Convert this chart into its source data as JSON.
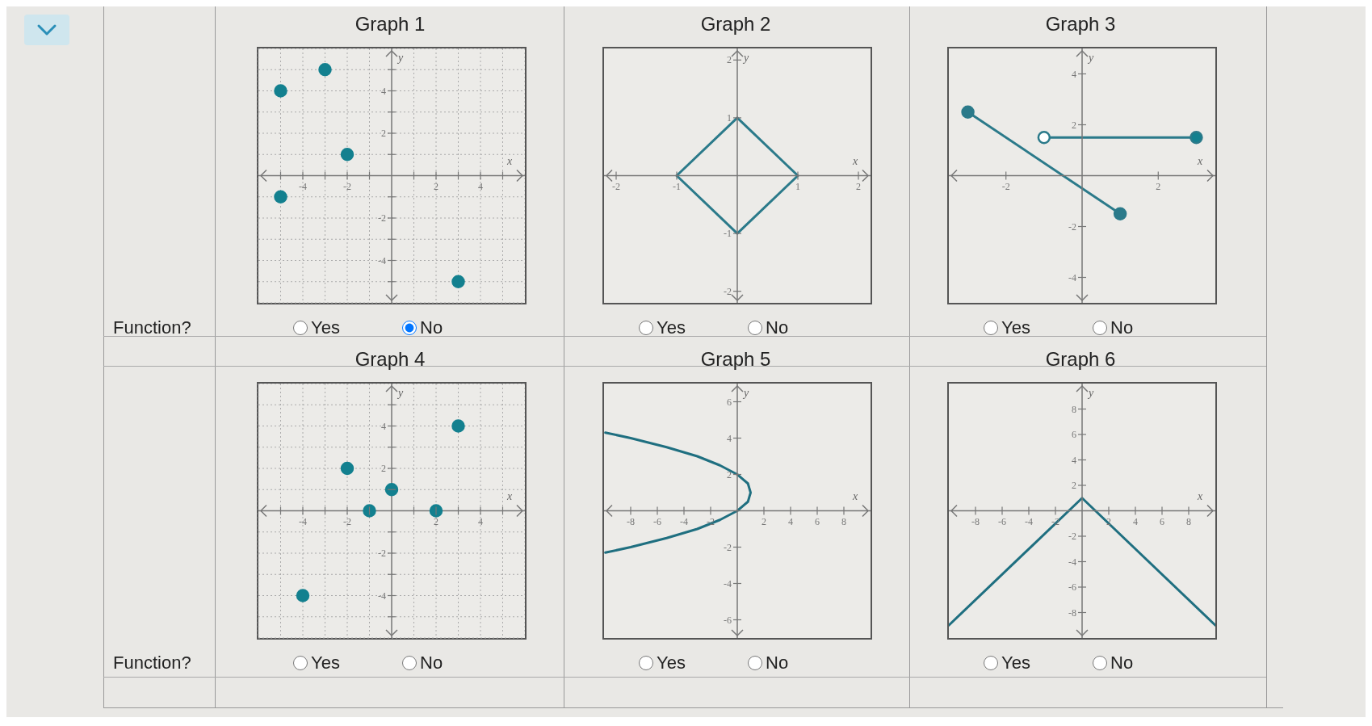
{
  "chart_data": [
    {
      "type": "scatter",
      "title": "Graph 1",
      "xlabel": "x",
      "ylabel": "y",
      "x": [
        -5,
        -3,
        -2,
        -5,
        3
      ],
      "values": [
        4,
        5,
        1,
        -1,
        -5
      ],
      "color": "#13808f",
      "marker": "circle",
      "grid": true,
      "xlim": [
        -6,
        6
      ],
      "ylim": [
        -6,
        6
      ],
      "xticks": [
        {
          "value": -5,
          "label": null
        },
        -4,
        {
          "value": -3,
          "label": null
        },
        -2,
        {
          "value": -1,
          "label": null
        },
        {
          "value": 1,
          "label": null
        },
        2,
        {
          "value": 3,
          "label": null
        },
        4,
        {
          "value": 5,
          "label": null
        }
      ],
      "yticks": [
        {
          "value": -5,
          "label": null
        },
        -4,
        {
          "value": -3,
          "label": null
        },
        -2,
        {
          "value": -1,
          "label": null
        },
        {
          "value": 1,
          "label": null
        },
        2,
        {
          "value": 3,
          "label": null
        },
        4,
        {
          "value": 5,
          "label": null
        }
      ],
      "annotations": [
        "Function?",
        "Yes",
        "No"
      ]
    },
    {
      "type": "line",
      "title": "Graph 2",
      "xlabel": "x",
      "ylabel": "y",
      "series": [
        {
          "color": "#2b7a8a",
          "x": [
            -1,
            0,
            1
          ],
          "values": [
            0,
            1,
            0
          ]
        },
        {
          "color": "#2b7a8a",
          "x": [
            -1,
            0,
            1
          ],
          "values": [
            0,
            -1,
            0
          ]
        }
      ],
      "xlim": [
        -2.2,
        2.2
      ],
      "ylim": [
        -2.2,
        2.2
      ],
      "xticks": [
        -2,
        -1,
        1,
        2
      ],
      "yticks": [
        -2,
        -1,
        1,
        2
      ],
      "annotations": [
        "Yes",
        "No"
      ]
    },
    {
      "type": "line",
      "title": "Graph 3",
      "xlabel": "x",
      "ylabel": "y",
      "series": [
        {
          "color": "#2b7a8a",
          "x": [
            -3,
            1
          ],
          "values": [
            2.5,
            -1.5
          ],
          "marker": "circle"
        },
        {
          "color": "#2b7a8a",
          "x": [
            -1,
            3
          ],
          "values": [
            1.5,
            1.5
          ]
        },
        {
          "type": "scatter",
          "color": "#13808f",
          "x": [
            3
          ],
          "values": [
            1.5
          ],
          "marker": "circle"
        },
        {
          "type": "scatter",
          "color": "#ffffff",
          "x": [
            -1
          ],
          "values": [
            1.5
          ],
          "marker": "circle"
        }
      ],
      "xlim": [
        -3.5,
        3.5
      ],
      "ylim": [
        -5,
        5
      ],
      "xticks": [
        -2,
        2
      ],
      "yticks": [
        -4,
        -2,
        2,
        4
      ],
      "annotations": [
        "Yes",
        "No"
      ]
    },
    {
      "type": "scatter",
      "title": "Graph 4",
      "xlabel": "x",
      "ylabel": "y",
      "x": [
        -4,
        -2,
        -1,
        0,
        2,
        3
      ],
      "values": [
        -4,
        2,
        0,
        1,
        0,
        4
      ],
      "color": "#13808f",
      "marker": "circle",
      "grid": true,
      "xlim": [
        -6,
        6
      ],
      "ylim": [
        -6,
        6
      ],
      "xticks": [
        {
          "value": -5,
          "label": null
        },
        -4,
        {
          "value": -3,
          "label": null
        },
        -2,
        {
          "value": -1,
          "label": null
        },
        {
          "value": 1,
          "label": null
        },
        2,
        {
          "value": 3,
          "label": null
        },
        4,
        {
          "value": 5,
          "label": null
        }
      ],
      "yticks": [
        {
          "value": -5,
          "label": null
        },
        -4,
        {
          "value": -3,
          "label": null
        },
        -2,
        {
          "value": -1,
          "label": null
        },
        {
          "value": 1,
          "label": null
        },
        2,
        {
          "value": 3,
          "label": null
        },
        4,
        {
          "value": 5,
          "label": null
        }
      ],
      "annotations": [
        "Function?",
        "Yes",
        "No"
      ]
    },
    {
      "type": "line",
      "title": "Graph 5",
      "xlabel": "x",
      "ylabel": "y",
      "series": [
        {
          "color": "#1f6f80",
          "x": [
            -9.9,
            -8,
            -5.3,
            -3,
            -1.3,
            0,
            0.4,
            0.8,
            0.9,
            1,
            0.9,
            0.8,
            0.4,
            0,
            -1.3,
            -3,
            -5.3,
            -8,
            -9.9
          ],
          "values": [
            -2.3,
            -2,
            -1.5,
            -1,
            -0.5,
            0,
            0.25,
            0.5,
            0.75,
            1,
            1.25,
            1.5,
            1.75,
            2,
            2.5,
            3,
            3.5,
            4,
            4.3
          ]
        }
      ],
      "xlim": [
        -10,
        10
      ],
      "ylim": [
        -7,
        7
      ],
      "xticks": [
        -8,
        -6,
        -4,
        -2,
        2,
        4,
        6,
        8
      ],
      "yticks": [
        -6,
        -4,
        -2,
        2,
        4,
        6
      ],
      "annotations": [
        "Yes",
        "No"
      ]
    },
    {
      "type": "line",
      "title": "Graph 6",
      "xlabel": "x",
      "ylabel": "y",
      "series": [
        {
          "color": "#1f6f80",
          "x": [
            -10,
            0,
            10
          ],
          "values": [
            -9,
            1,
            -9
          ]
        }
      ],
      "xlim": [
        -10,
        10
      ],
      "ylim": [
        -10,
        10
      ],
      "xticks": [
        -8,
        -6,
        -4,
        -2,
        2,
        4,
        6,
        8
      ],
      "yticks": [
        -8,
        -6,
        -4,
        -2,
        2,
        4,
        6,
        8
      ],
      "annotations": [
        "Yes",
        "No"
      ]
    }
  ]
}
